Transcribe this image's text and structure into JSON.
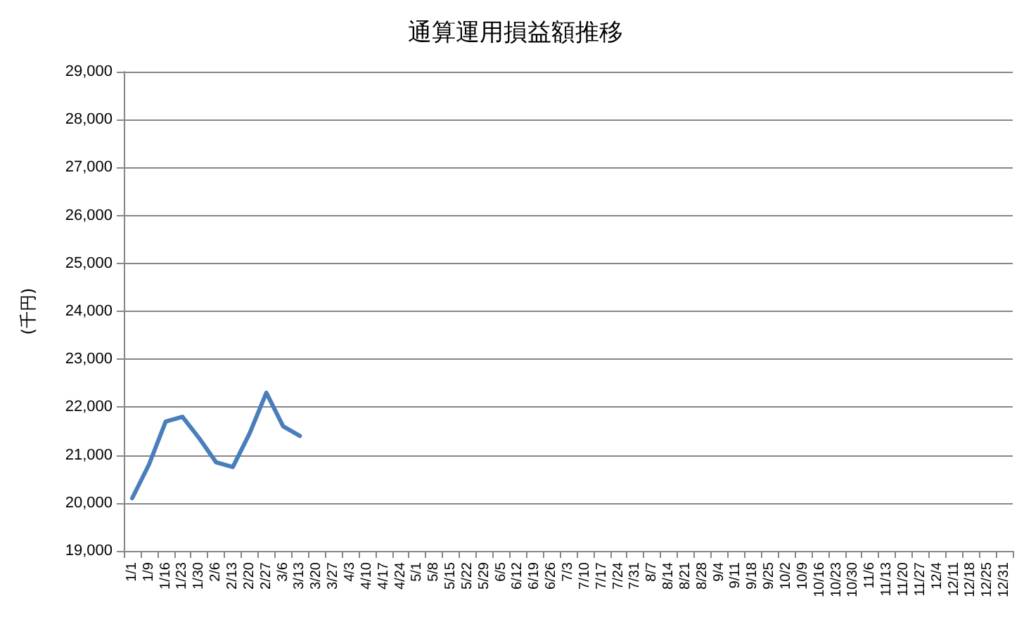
{
  "chart_data": {
    "type": "line",
    "title": "通算運用損益額推移",
    "ylabel": "(千円)",
    "categories": [
      "1/1",
      "1/9",
      "1/16",
      "1/23",
      "1/30",
      "2/6",
      "2/13",
      "2/20",
      "2/27",
      "3/6",
      "3/13",
      "3/20",
      "3/27",
      "4/3",
      "4/10",
      "4/17",
      "4/24",
      "5/1",
      "5/8",
      "5/15",
      "5/22",
      "5/29",
      "6/5",
      "6/12",
      "6/19",
      "6/26",
      "7/3",
      "7/10",
      "7/17",
      "7/24",
      "7/31",
      "8/7",
      "8/14",
      "8/21",
      "8/28",
      "9/4",
      "9/11",
      "9/18",
      "9/25",
      "10/2",
      "10/9",
      "10/16",
      "10/23",
      "10/30",
      "11/6",
      "11/13",
      "11/20",
      "11/27",
      "12/4",
      "12/11",
      "12/18",
      "12/25",
      "12/31"
    ],
    "series": [
      {
        "color": "#4a7ebb",
        "values": [
          20100,
          20800,
          21700,
          21800,
          21350,
          20850,
          20750,
          21450,
          22300,
          21600,
          21400,
          null,
          null,
          null,
          null,
          null,
          null,
          null,
          null,
          null,
          null,
          null,
          null,
          null,
          null,
          null,
          null,
          null,
          null,
          null,
          null,
          null,
          null,
          null,
          null,
          null,
          null,
          null,
          null,
          null,
          null,
          null,
          null,
          null,
          null,
          null,
          null,
          null,
          null,
          null,
          null,
          null,
          null
        ]
      }
    ],
    "ylim": [
      19000,
      29000
    ],
    "yticks": [
      {
        "value": 19000,
        "label": "19,000"
      },
      {
        "value": 20000,
        "label": "20,000"
      },
      {
        "value": 21000,
        "label": "21,000"
      },
      {
        "value": 22000,
        "label": "22,000"
      },
      {
        "value": 23000,
        "label": "23,000"
      },
      {
        "value": 24000,
        "label": "24,000"
      },
      {
        "value": 25000,
        "label": "25,000"
      },
      {
        "value": 26000,
        "label": "26,000"
      },
      {
        "value": 27000,
        "label": "27,000"
      },
      {
        "value": 28000,
        "label": "28,000"
      },
      {
        "value": 29000,
        "label": "29,000"
      }
    ],
    "grid": "y",
    "marker": "none",
    "line_style": "solid"
  }
}
